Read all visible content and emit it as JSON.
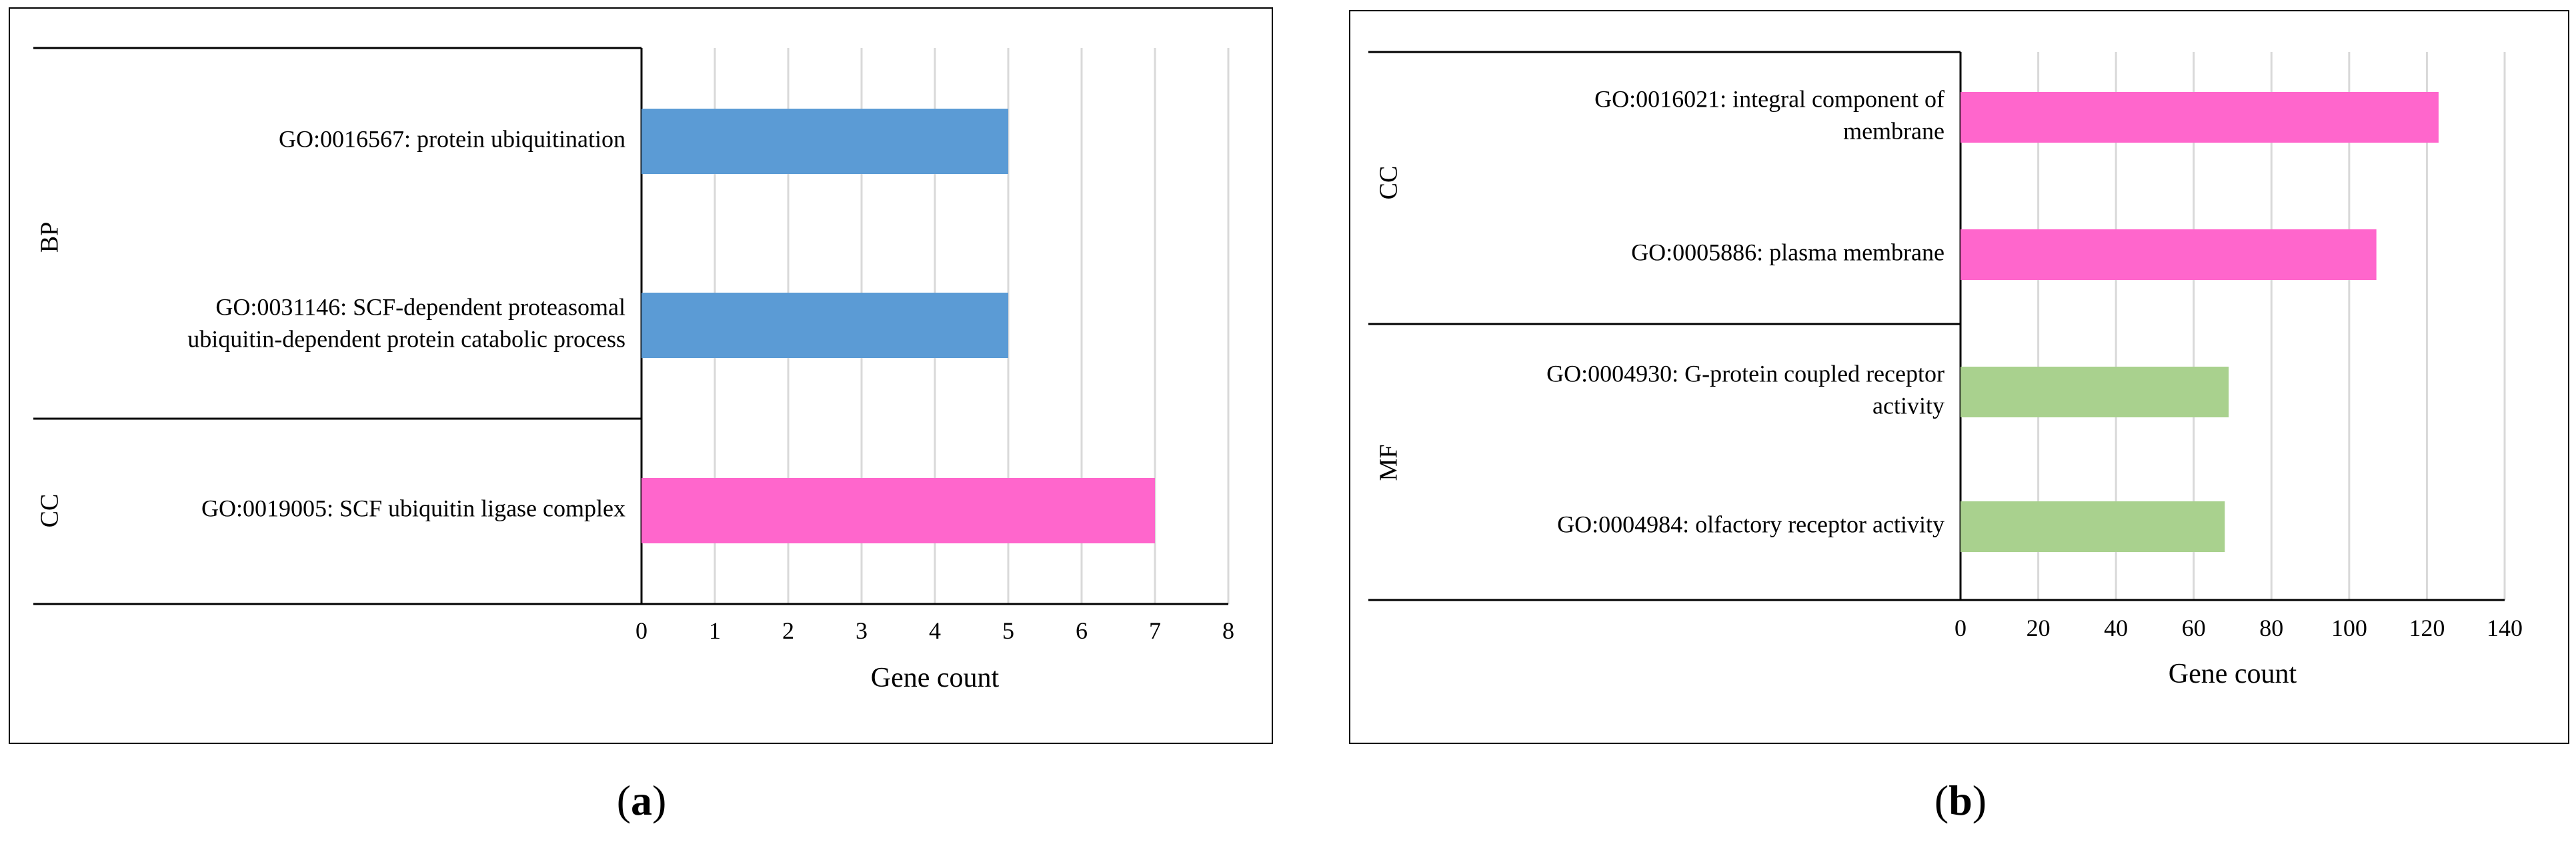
{
  "colors": {
    "bp": "#5b9bd5",
    "cc": "#ff66cc",
    "mf": "#a9d18e",
    "grid": "#d9d9d9",
    "axis": "#000000",
    "frame": "#000000"
  },
  "chart_data": [
    {
      "type": "bar",
      "orientation": "horizontal",
      "panel_label": "(a)",
      "panel_letter": "a",
      "xlabel": "Gene count",
      "xlim": [
        0,
        8
      ],
      "xticks": [
        "0",
        "1",
        "2",
        "3",
        "4",
        "5",
        "6",
        "7",
        "8"
      ],
      "groups": [
        {
          "name": "BP",
          "items": [
            {
              "lines": [
                "GO:0016567: protein ubiquitination"
              ],
              "value": 5
            },
            {
              "lines": [
                "GO:0031146: SCF-dependent proteasomal",
                "ubiquitin-dependent protein catabolic process"
              ],
              "value": 5
            }
          ]
        },
        {
          "name": "CC",
          "items": [
            {
              "lines": [
                "GO:0019005: SCF ubiquitin ligase complex"
              ],
              "value": 7
            }
          ]
        }
      ]
    },
    {
      "type": "bar",
      "orientation": "horizontal",
      "panel_label": "(b)",
      "panel_letter": "b",
      "xlabel": "Gene count",
      "xlim": [
        0,
        140
      ],
      "xticks": [
        "0",
        "20",
        "40",
        "60",
        "80",
        "100",
        "120",
        "140"
      ],
      "groups": [
        {
          "name": "CC",
          "items": [
            {
              "lines": [
                "GO:0016021: integral component of",
                "membrane"
              ],
              "value": 123
            },
            {
              "lines": [
                "GO:0005886: plasma membrane"
              ],
              "value": 107
            }
          ]
        },
        {
          "name": "MF",
          "items": [
            {
              "lines": [
                "GO:0004930: G-protein coupled receptor",
                "activity"
              ],
              "value": 69
            },
            {
              "lines": [
                "GO:0004984: olfactory receptor activity"
              ],
              "value": 68
            }
          ]
        }
      ]
    }
  ]
}
